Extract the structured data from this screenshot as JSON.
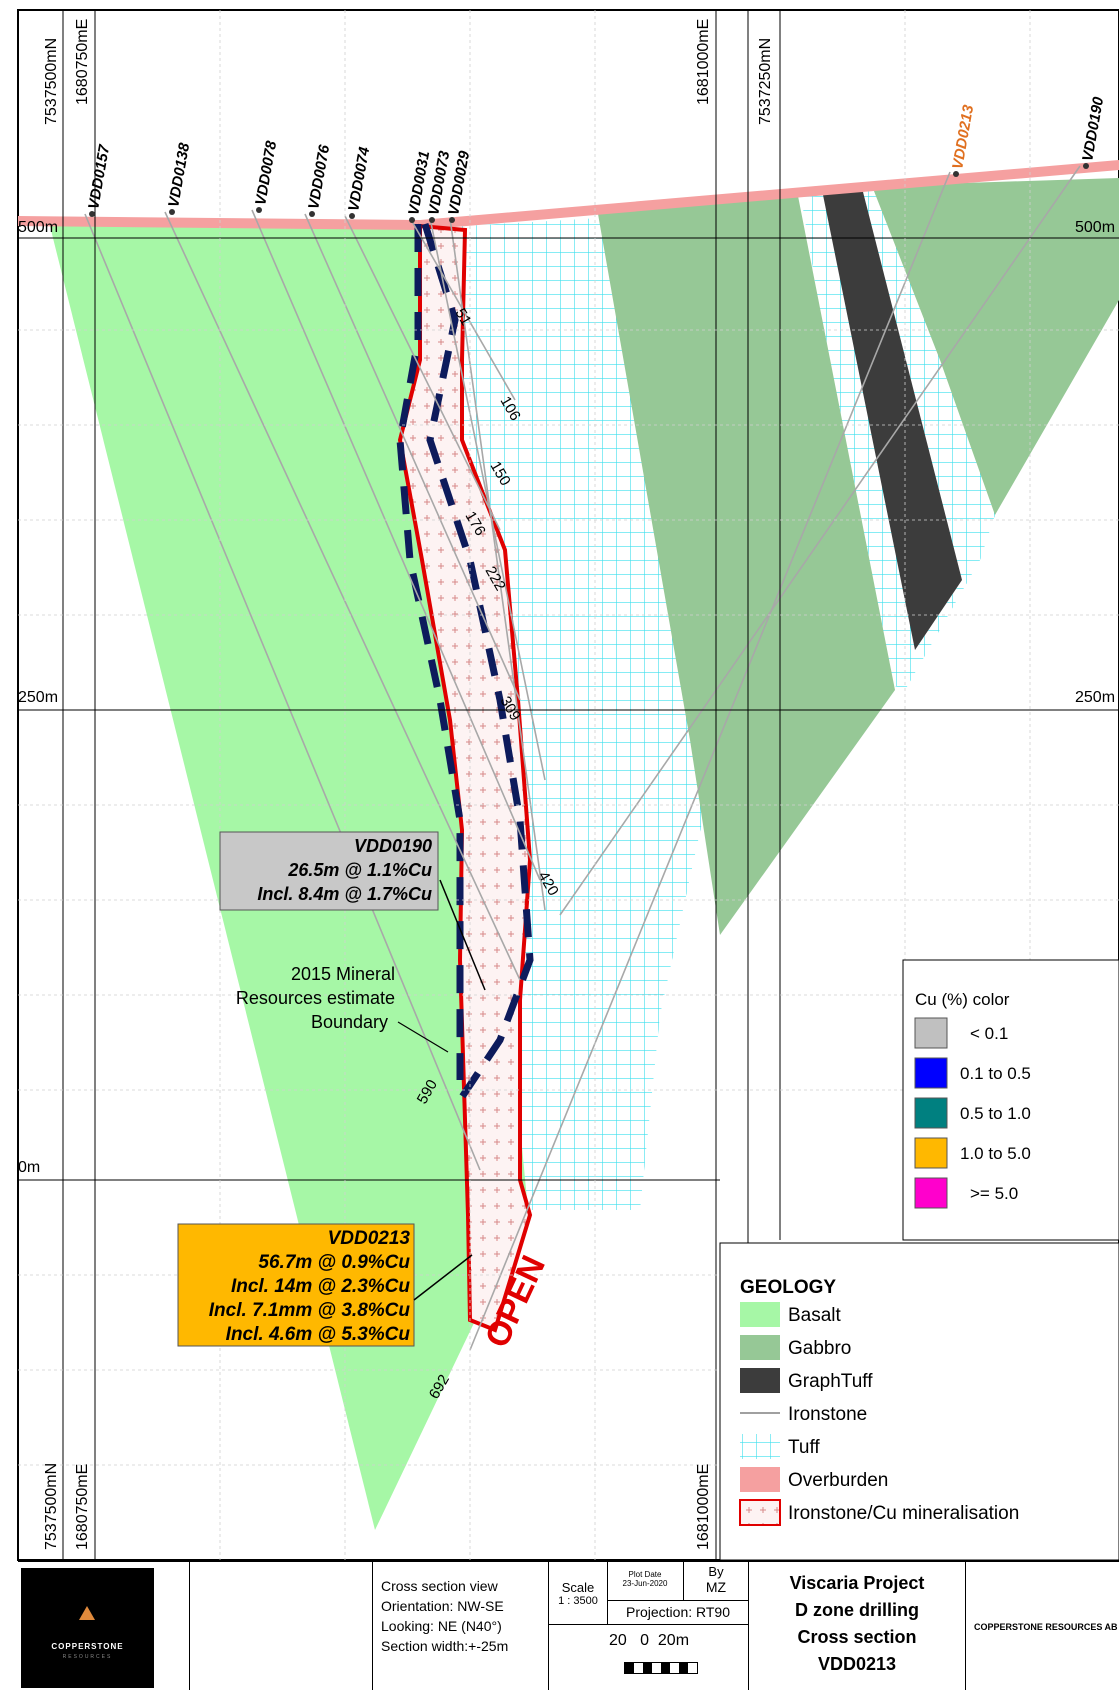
{
  "grid": {
    "northing_top_left": "7537500mN",
    "easting_top_left": "1680750mE",
    "easting_top_mid": "1681000mE",
    "northing_top_mid": "7537250mN",
    "northing_bottom_left": "7537500mN",
    "easting_bottom_left": "1680750mE",
    "easting_bottom_mid": "1681000mE",
    "elev_500_left": "500m",
    "elev_500_right": "500m",
    "elev_250_left": "250m",
    "elev_250_right": "250m",
    "elev_0_left": "0m"
  },
  "holes": [
    "VDD0157",
    "VDD0138",
    "VDD0078",
    "VDD0076",
    "VDD0074",
    "VDD0031",
    "VDD0073",
    "VDD0029",
    "VDD0213",
    "VDD0190"
  ],
  "depth_labels": [
    "51",
    "106",
    "150",
    "176",
    "222",
    "309",
    "420",
    "590",
    "692"
  ],
  "callouts": {
    "vdd0190": {
      "line1": "VDD0190",
      "line2": "26.5m @ 1.1%Cu",
      "line3": "Incl. 8.4m @ 1.7%Cu"
    },
    "vdd0213": {
      "line1": "VDD0213",
      "line2": "56.7m @ 0.9%Cu",
      "line3": "Incl. 14m @ 2.3%Cu",
      "line4": "Incl. 7.1mm @ 3.8%Cu",
      "line5": "Incl. 4.6m @ 5.3%Cu"
    },
    "boundary": {
      "line1": "2015 Mineral",
      "line2": "Resources estimate",
      "line3": "Boundary"
    },
    "open": "OPEN"
  },
  "cu_legend": {
    "title": "Cu (%) color",
    "items": [
      {
        "label": "< 0.1",
        "color": "#c0c0c0"
      },
      {
        "label": "0.1 to 0.5",
        "color": "#0000ff"
      },
      {
        "label": "0.5 to 1.0",
        "color": "#008080"
      },
      {
        "label": "1.0 to 5.0",
        "color": "#ffb800"
      },
      {
        "label": ">= 5.0",
        "color": "#ff00cc"
      }
    ]
  },
  "geology_legend": {
    "title": "GEOLOGY",
    "items": [
      {
        "label": "Basalt",
        "color": "#a6f7a6"
      },
      {
        "label": "Gabbro",
        "color": "#96c896"
      },
      {
        "label": "GraphTuff",
        "color": "#3c3c3c"
      },
      {
        "label": "Ironstone",
        "color": "#a0a0a0"
      },
      {
        "label": "Tuff",
        "color": "#6fe6f2"
      },
      {
        "label": "Overburden",
        "color": "#f5a0a0"
      },
      {
        "label": "Ironstone/Cu mineralisation",
        "color": "#e00000"
      }
    ]
  },
  "title_block": {
    "company": "COPPERSTONE",
    "company_sub": "RESOURCES",
    "view_line1": "Cross section view",
    "view_line2": "Orientation: NW-SE",
    "view_line3": "Looking: NE (N40°)",
    "view_line4": "Section width:+-25m",
    "scale_label": "Scale",
    "scale_value": "1 : 3500",
    "plot_date_label": "Plot Date",
    "plot_date_value": "23-Jun-2020",
    "by_label": "By",
    "by_value": "MZ",
    "projection": "Projection: RT90",
    "scalebar_text": "20   0  20m",
    "title1": "Viscaria Project",
    "title2": "D zone drilling",
    "title3": "Cross section",
    "title4": "VDD0213",
    "company_full": "COPPERSTONE RESOURCES AB"
  },
  "colors": {
    "basalt": "#a6f7a6",
    "gabbro": "#96c896",
    "graphtuff": "#3c3c3c",
    "tuff_grid": "#3ee0ee",
    "overburden": "#f5a0a0",
    "mineral": "#e00000",
    "boundary": "#0d1b5c",
    "callout_grey": "#c8c8c8",
    "callout_orange": "#ffb800"
  }
}
